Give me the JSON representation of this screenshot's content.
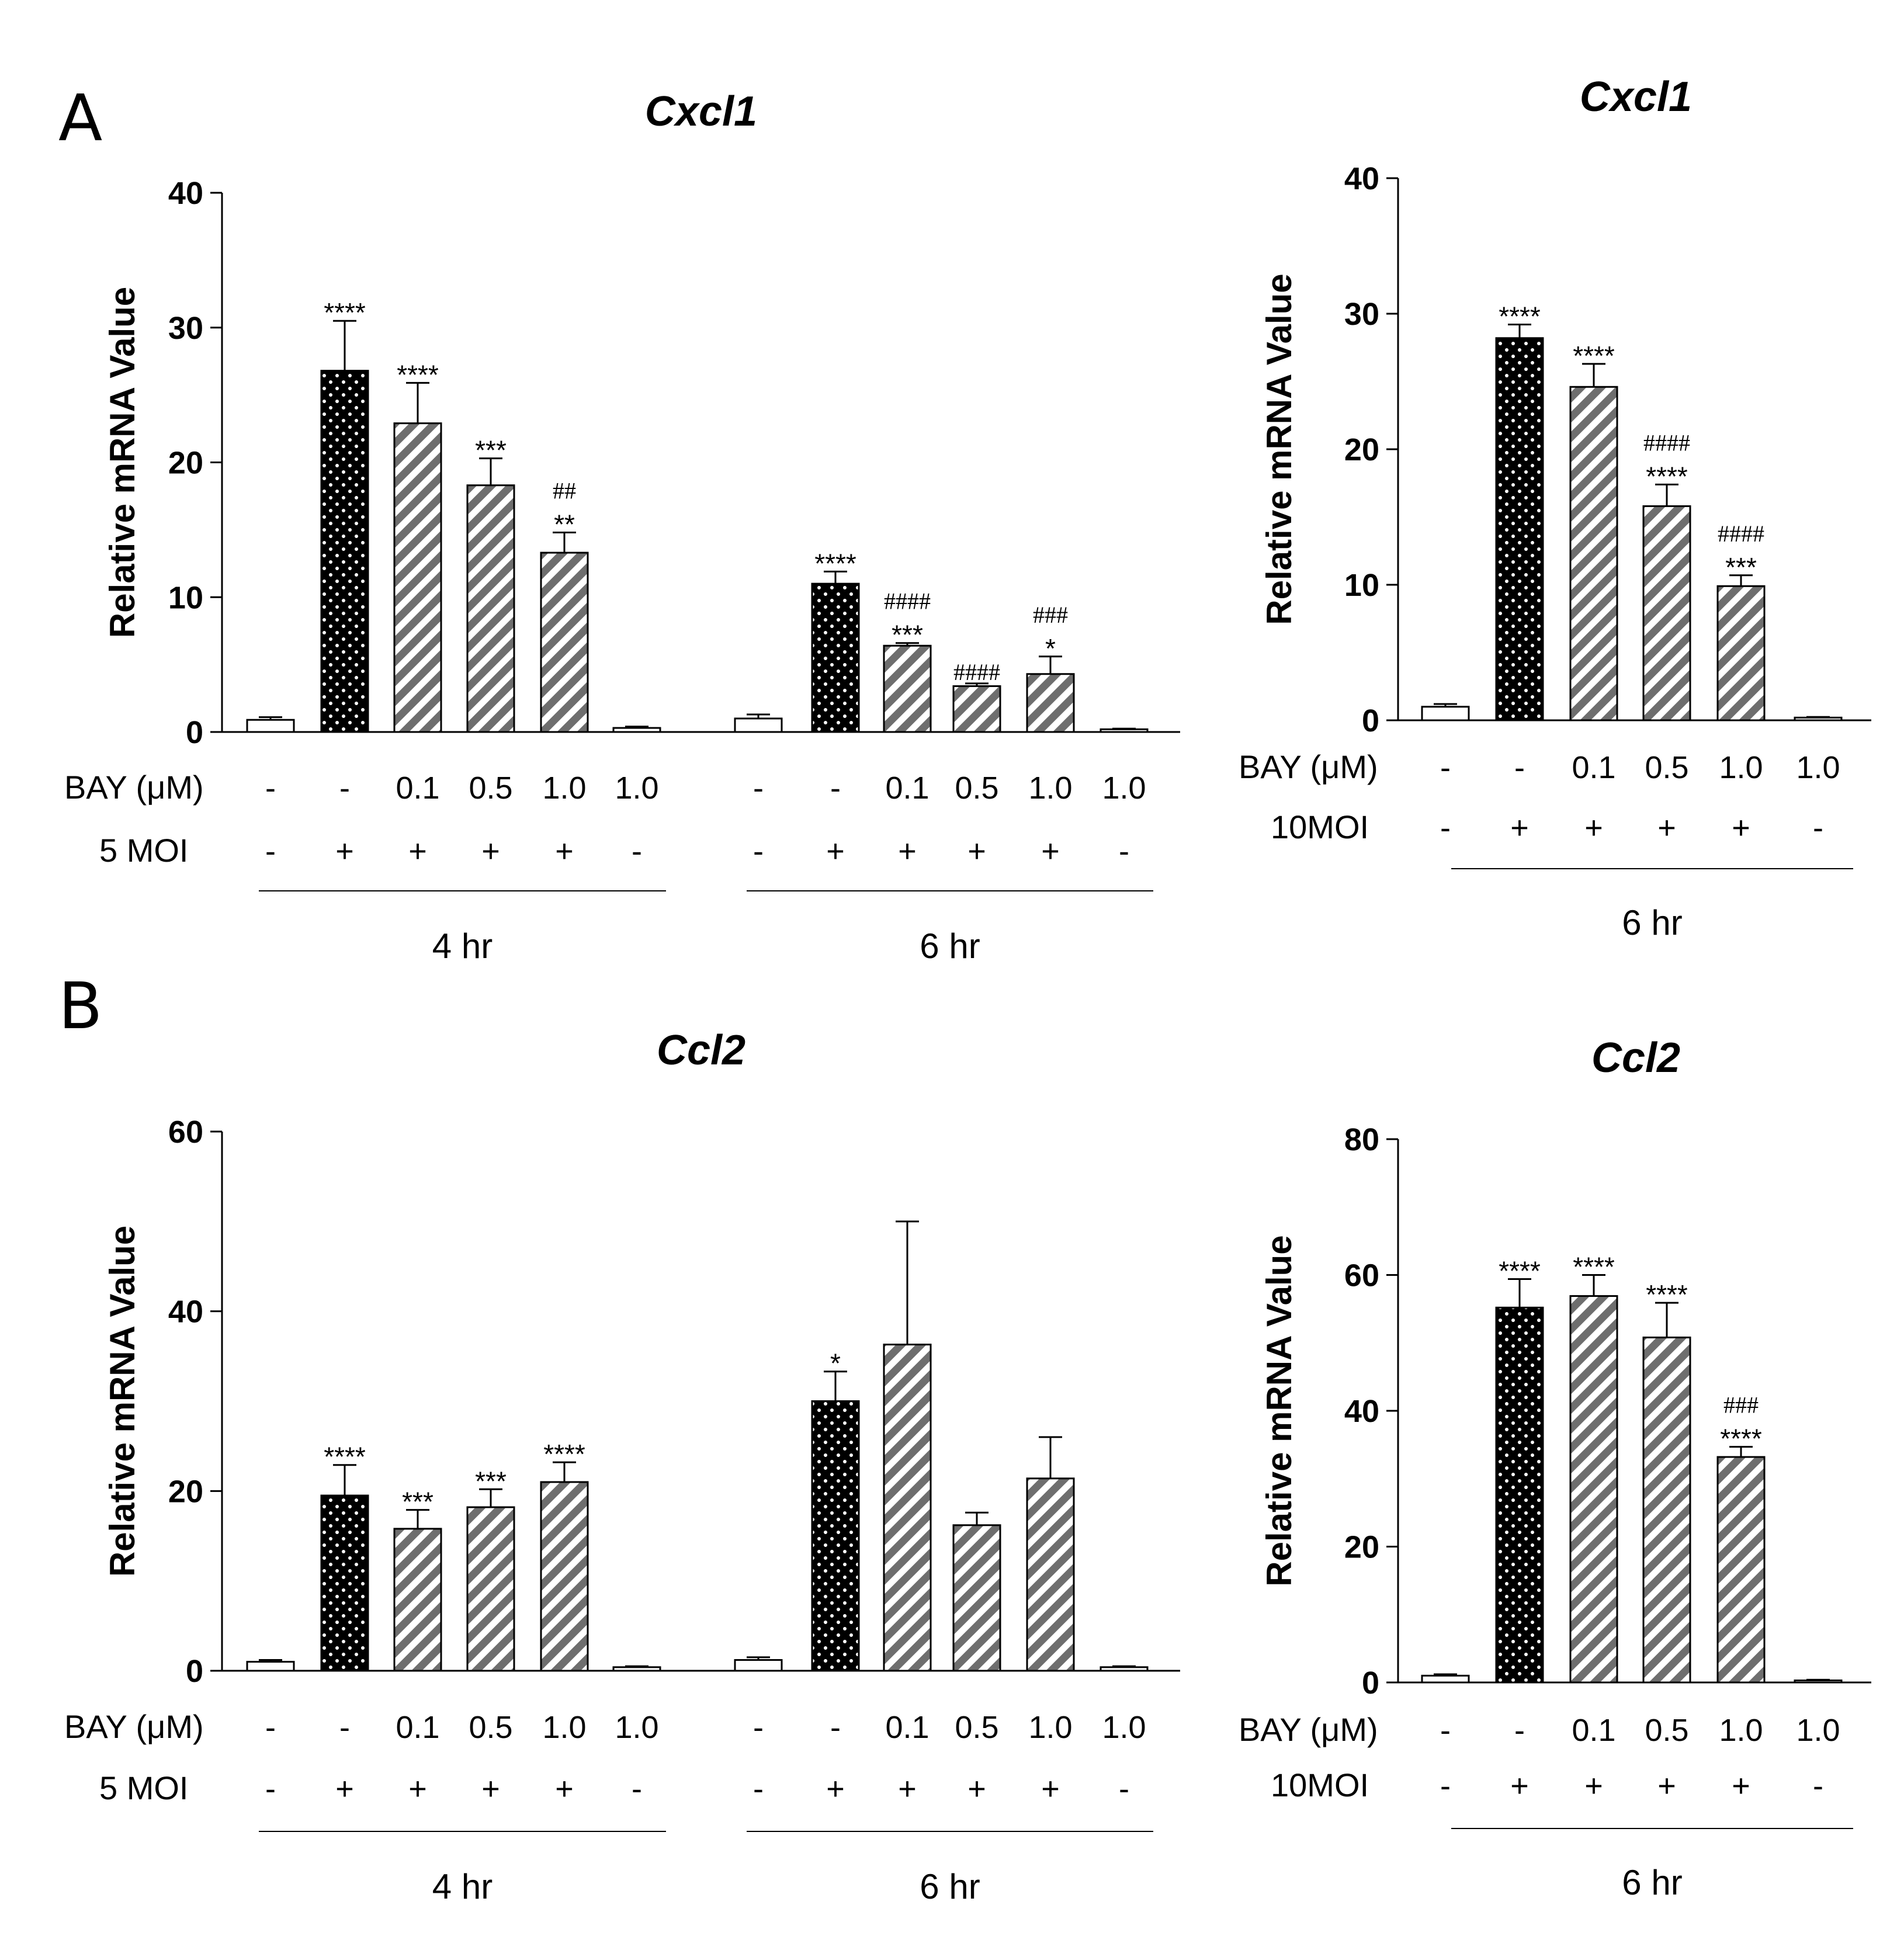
{
  "panel_labels": [
    "A",
    "B"
  ],
  "row_labels": {
    "bay": "BAY (μM)",
    "moi_5": "5 MOI",
    "moi_10": "10MOI"
  },
  "colors": {
    "ctrl_fill": "#ffffff",
    "inf_fill": "#000000",
    "inf_dot": "#ffffff",
    "bay_fill": "#ffffff",
    "bay_stripe": "#6e6e6e",
    "stroke": "#000000"
  },
  "chart_data": [
    {
      "type": "bar",
      "title": "Cxcl1",
      "ylabel": "Relative mRNA Value",
      "ylim": [
        0,
        40
      ],
      "yticks": [
        0,
        10,
        20,
        30,
        40
      ],
      "groups": [
        {
          "label": "4 hr",
          "bay": [
            "-",
            "-",
            "0.1",
            "0.5",
            "1.0",
            "1.0"
          ],
          "moi": [
            "-",
            "+",
            "+",
            "+",
            "+",
            "-"
          ],
          "values": [
            0.9,
            26.8,
            22.9,
            18.3,
            13.3,
            0.3
          ],
          "errors": [
            0.2,
            3.7,
            3.0,
            2.0,
            1.5,
            0.1
          ],
          "styles": [
            "ctrl",
            "inf",
            "bay",
            "bay",
            "bay",
            "ctrl"
          ],
          "stars": [
            "",
            "****",
            "****",
            "***",
            "**",
            ""
          ],
          "hashes": [
            "",
            "",
            "",
            "",
            "##",
            ""
          ]
        },
        {
          "label": "6 hr",
          "bay": [
            "-",
            "-",
            "0.1",
            "0.5",
            "1.0",
            "1.0"
          ],
          "moi": [
            "-",
            "+",
            "+",
            "+",
            "+",
            "-"
          ],
          "values": [
            1.0,
            11.0,
            6.4,
            3.4,
            4.3,
            0.2
          ],
          "errors": [
            0.3,
            0.9,
            0.2,
            0.2,
            1.3,
            0.05
          ],
          "styles": [
            "ctrl",
            "inf",
            "bay",
            "bay",
            "bay",
            "ctrl"
          ],
          "stars": [
            "",
            "****",
            "***",
            "",
            "*",
            ""
          ],
          "hashes": [
            "",
            "",
            "####",
            "####",
            "###",
            ""
          ]
        }
      ],
      "moi_row_label": "5 MOI"
    },
    {
      "type": "bar",
      "title": "Cxcl1",
      "ylabel": "Relative mRNA Value",
      "ylim": [
        0,
        40
      ],
      "yticks": [
        0,
        10,
        20,
        30,
        40
      ],
      "groups": [
        {
          "label": "6 hr",
          "bay": [
            "-",
            "-",
            "0.1",
            "0.5",
            "1.0",
            "1.0"
          ],
          "moi": [
            "-",
            "+",
            "+",
            "+",
            "+",
            "-"
          ],
          "values": [
            1.0,
            28.2,
            24.6,
            15.8,
            9.9,
            0.2
          ],
          "errors": [
            0.2,
            1.0,
            1.7,
            1.6,
            0.8,
            0.05
          ],
          "styles": [
            "ctrl",
            "inf",
            "bay",
            "bay",
            "bay",
            "ctrl"
          ],
          "stars": [
            "",
            "****",
            "****",
            "****",
            "***",
            ""
          ],
          "hashes": [
            "",
            "",
            "",
            "####",
            "####",
            ""
          ]
        }
      ],
      "moi_row_label": "10MOI"
    },
    {
      "type": "bar",
      "title": "Ccl2",
      "ylabel": "Relative mRNA Value",
      "ylim": [
        0,
        60
      ],
      "yticks": [
        0,
        20,
        40,
        60
      ],
      "groups": [
        {
          "label": "4 hr",
          "bay": [
            "-",
            "-",
            "0.1",
            "0.5",
            "1.0",
            "1.0"
          ],
          "moi": [
            "-",
            "+",
            "+",
            "+",
            "+",
            "-"
          ],
          "values": [
            1.0,
            19.5,
            15.8,
            18.2,
            21.0,
            0.4
          ],
          "errors": [
            0.2,
            3.4,
            2.1,
            2.0,
            2.2,
            0.1
          ],
          "styles": [
            "ctrl",
            "inf",
            "bay",
            "bay",
            "bay",
            "ctrl"
          ],
          "stars": [
            "",
            "****",
            "***",
            "***",
            "****",
            ""
          ],
          "hashes": [
            "",
            "",
            "",
            "",
            "",
            ""
          ]
        },
        {
          "label": "6 hr",
          "bay": [
            "-",
            "-",
            "0.1",
            "0.5",
            "1.0",
            "1.0"
          ],
          "moi": [
            "-",
            "+",
            "+",
            "+",
            "+",
            "-"
          ],
          "values": [
            1.2,
            30.0,
            36.3,
            16.2,
            21.4,
            0.4
          ],
          "errors": [
            0.3,
            3.3,
            13.7,
            1.4,
            4.6,
            0.1
          ],
          "styles": [
            "ctrl",
            "inf",
            "bay",
            "bay",
            "bay",
            "ctrl"
          ],
          "stars": [
            "",
            "*",
            "",
            "",
            "",
            ""
          ],
          "hashes": [
            "",
            "",
            "",
            "",
            "",
            ""
          ]
        }
      ],
      "moi_row_label": "5 MOI"
    },
    {
      "type": "bar",
      "title": "Ccl2",
      "ylabel": "Relative mRNA Value",
      "ylim": [
        0,
        80
      ],
      "yticks": [
        0,
        20,
        40,
        60,
        80
      ],
      "groups": [
        {
          "label": "6 hr",
          "bay": [
            "-",
            "-",
            "0.1",
            "0.5",
            "1.0",
            "1.0"
          ],
          "moi": [
            "-",
            "+",
            "+",
            "+",
            "+",
            "-"
          ],
          "values": [
            1.0,
            55.2,
            56.9,
            50.8,
            33.2,
            0.3
          ],
          "errors": [
            0.2,
            4.2,
            3.1,
            5.1,
            1.5,
            0.1
          ],
          "styles": [
            "ctrl",
            "inf",
            "bay",
            "bay",
            "bay",
            "ctrl"
          ],
          "stars": [
            "",
            "****",
            "****",
            "****",
            "****",
            ""
          ],
          "hashes": [
            "",
            "",
            "",
            "",
            "###",
            ""
          ]
        }
      ],
      "moi_row_label": "10MOI"
    }
  ]
}
